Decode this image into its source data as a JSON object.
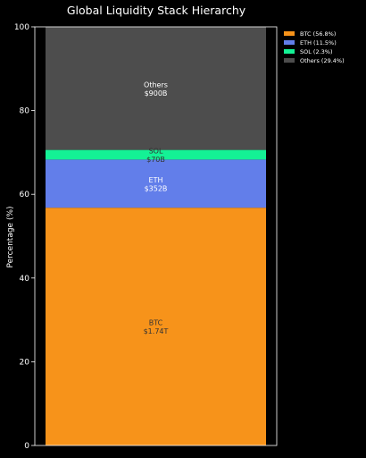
{
  "chart_data": {
    "type": "bar",
    "title": "Global Liquidity Stack Hierarchy",
    "xlabel": "",
    "ylabel": "Percentage (%)",
    "ylim": [
      0,
      100
    ],
    "yticks": [
      0,
      20,
      40,
      60,
      80,
      100
    ],
    "stacked": true,
    "grid": false,
    "legend_position": "right",
    "segments": [
      {
        "name": "BTC",
        "value": 56.8,
        "amount_label": "$1.74T",
        "legend_label": "BTC (56.8%)",
        "color": "#F7931A",
        "label_color": "#333333"
      },
      {
        "name": "ETH",
        "value": 11.5,
        "amount_label": "$352B",
        "legend_label": "ETH (11.5%)",
        "color": "#627EEA",
        "label_color": "#ffffff"
      },
      {
        "name": "SOL",
        "value": 2.3,
        "amount_label": "$70B",
        "legend_label": "SOL (2.3%)",
        "color": "#14F195",
        "label_color": "#333333"
      },
      {
        "name": "Others",
        "value": 29.4,
        "amount_label": "$900B",
        "legend_label": "Others (29.4%)",
        "color": "#4D4D4D",
        "label_color": "#ffffff"
      }
    ]
  }
}
